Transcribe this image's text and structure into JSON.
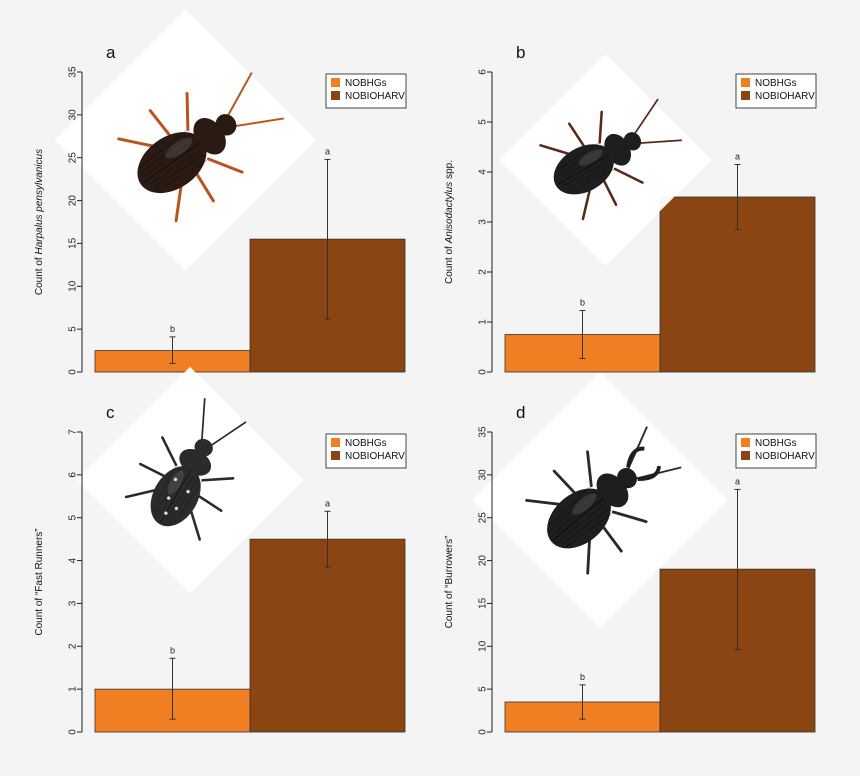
{
  "colors": {
    "NOBHGs": "#F07F24",
    "NOBIOHARV": "#8B4513",
    "background": "#f4f4f4"
  },
  "legend": [
    "NOBHGs",
    "NOBIOHARV"
  ],
  "chart_data": [
    {
      "type": "bar",
      "panel": "a",
      "ylabel_prefix": "Count of ",
      "ylabel_italic": "Harpalus pensylvanicus",
      "ylabel_suffix": "",
      "ylim": [
        0,
        35
      ],
      "yticks": [
        0,
        5,
        10,
        15,
        20,
        25,
        30,
        35
      ],
      "categories": [
        "NOBHGs",
        "NOBIOHARV"
      ],
      "values": [
        2.5,
        15.5
      ],
      "error_low": [
        1.0,
        6.2
      ],
      "error_high": [
        4.1,
        24.8
      ],
      "significance": [
        "b",
        "a"
      ],
      "legend_position": "top-right",
      "image": "beetle-harpalus"
    },
    {
      "type": "bar",
      "panel": "b",
      "ylabel_prefix": "Count of ",
      "ylabel_italic": "Anisodactylus",
      "ylabel_suffix": " spp.",
      "ylim": [
        0,
        6
      ],
      "yticks": [
        0,
        1,
        2,
        3,
        4,
        5,
        6
      ],
      "categories": [
        "NOBHGs",
        "NOBIOHARV"
      ],
      "values": [
        0.75,
        3.5
      ],
      "error_low": [
        0.27,
        2.85
      ],
      "error_high": [
        1.23,
        4.15
      ],
      "significance": [
        "b",
        "a"
      ],
      "legend_position": "top-right",
      "image": "beetle-anisodactylus"
    },
    {
      "type": "bar",
      "panel": "c",
      "ylabel_prefix": "Count of “Fast Runners”",
      "ylabel_italic": "",
      "ylabel_suffix": "",
      "ylim": [
        0,
        7
      ],
      "yticks": [
        0,
        1,
        2,
        3,
        4,
        5,
        6,
        7
      ],
      "categories": [
        "NOBHGs",
        "NOBIOHARV"
      ],
      "values": [
        1.0,
        4.5
      ],
      "error_low": [
        0.3,
        3.85
      ],
      "error_high": [
        1.72,
        5.15
      ],
      "significance": [
        "b",
        "a"
      ],
      "legend_position": "top-right",
      "image": "beetle-tiger"
    },
    {
      "type": "bar",
      "panel": "d",
      "ylabel_prefix": "Count of “Burrowers”",
      "ylabel_italic": "",
      "ylabel_suffix": "",
      "ylim": [
        0,
        35
      ],
      "yticks": [
        0,
        5,
        10,
        15,
        20,
        25,
        30,
        35
      ],
      "categories": [
        "NOBHGs",
        "NOBIOHARV"
      ],
      "values": [
        3.5,
        19.0
      ],
      "error_low": [
        1.5,
        9.6
      ],
      "error_high": [
        5.5,
        28.3
      ],
      "significance": [
        "b",
        "a"
      ],
      "legend_position": "top-right",
      "image": "beetle-burrower"
    }
  ]
}
